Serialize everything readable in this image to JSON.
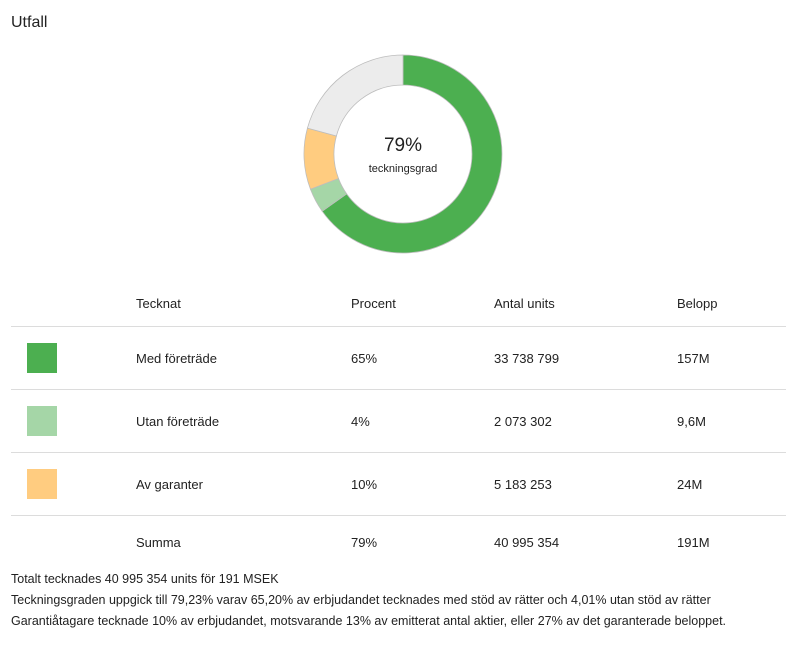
{
  "title": "Utfall",
  "center": {
    "percent": "79%",
    "label": "teckningsgrad"
  },
  "colors": {
    "remainder": "#ececec"
  },
  "table": {
    "headers": [
      "",
      "Tecknat",
      "Procent",
      "Antal units",
      "Belopp"
    ],
    "rows": [
      {
        "label": "Med företräde",
        "percent": "65%",
        "units": "33 738 799",
        "amount": "157M",
        "color": "#4caf50"
      },
      {
        "label": "Utan företräde",
        "percent": "4%",
        "units": "2 073 302",
        "amount": "9,6M",
        "color": "#a5d6a7"
      },
      {
        "label": "Av garanter",
        "percent": "10%",
        "units": "5 183 253",
        "amount": "24M",
        "color": "#ffcc80"
      }
    ],
    "sum": {
      "label": "Summa",
      "percent": "79%",
      "units": "40 995 354",
      "amount": "191M"
    }
  },
  "chart_data": {
    "type": "pie",
    "categories": [
      "Med företräde",
      "Utan företräde",
      "Av garanter",
      ""
    ],
    "values": [
      65.2,
      4.01,
      10,
      20.79
    ]
  },
  "notes": [
    "Totalt tecknades 40 995 354 units för 191 MSEK",
    "Teckningsgraden uppgick till 79,23% varav 65,20% av erbjudandet tecknades med stöd av rätter och 4,01% utan stöd av rätter",
    "Garantiåtagare tecknade 10% av erbjudandet, motsvarande 13% av emitterat antal aktier, eller 27% av det garanterade beloppet."
  ]
}
